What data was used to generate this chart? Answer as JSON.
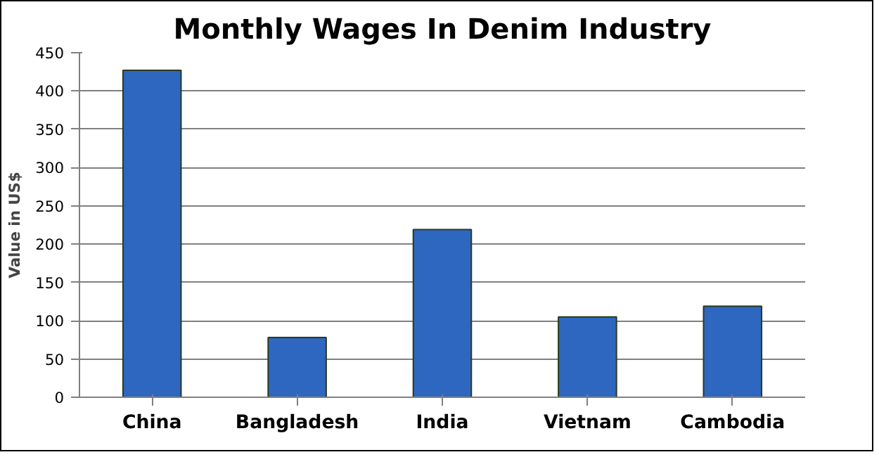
{
  "chart_data": {
    "type": "bar",
    "title": "Monthly Wages In Denim Industry",
    "ylabel": "Value in US$",
    "categories": [
      "China",
      "Bangladesh",
      "India",
      "Vietnam",
      "Cambodia"
    ],
    "values": [
      427,
      78,
      219,
      105,
      119
    ],
    "color": "#2e67c0",
    "ylim": [
      0,
      450
    ],
    "yticks": [
      0,
      50,
      100,
      150,
      200,
      250,
      300,
      350,
      400,
      450
    ],
    "grid": "y"
  }
}
